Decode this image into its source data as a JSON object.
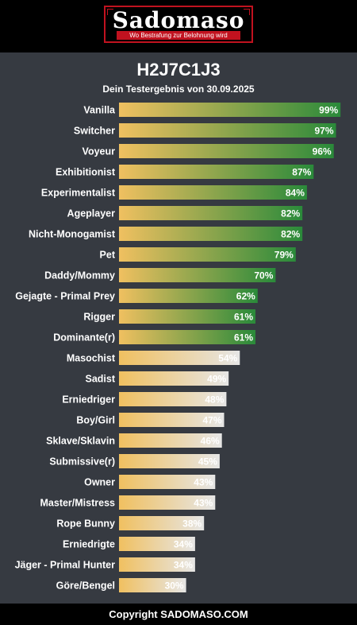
{
  "header": {
    "logo_text": "Sadomaso",
    "logo_tagline": "Wo Bestrafung zur Belohnung wird"
  },
  "title": "H2J7C1J3",
  "subtitle": "Dein Testergebnis von 30.09.2025",
  "footer": "Copyright SADOMASO.COM",
  "colors": {
    "bar_start": "#f0c060",
    "bar_high_end": "#2a8a3a",
    "bar_low_end": "#e6e6e6",
    "background": "#363a41",
    "header_bg": "#000000",
    "logo_accent": "#c1121f"
  },
  "chart_data": {
    "type": "bar",
    "orientation": "horizontal",
    "value_suffix": "%",
    "xlim": [
      0,
      100
    ],
    "categories": [
      "Vanilla",
      "Switcher",
      "Voyeur",
      "Exhibitionist",
      "Experimentalist",
      "Ageplayer",
      "Nicht-Monogamist",
      "Pet",
      "Daddy/Mommy",
      "Gejagte - Primal Prey",
      "Rigger",
      "Dominante(r)",
      "Masochist",
      "Sadist",
      "Erniedriger",
      "Boy/Girl",
      "Sklave/Sklavin",
      "Submissive(r)",
      "Owner",
      "Master/Mistress",
      "Rope Bunny",
      "Erniedrigte",
      "Jäger - Primal Hunter",
      "Göre/Bengel"
    ],
    "values": [
      99,
      97,
      96,
      87,
      84,
      82,
      82,
      79,
      70,
      62,
      61,
      61,
      54,
      49,
      48,
      47,
      46,
      45,
      43,
      43,
      38,
      34,
      34,
      30
    ]
  }
}
